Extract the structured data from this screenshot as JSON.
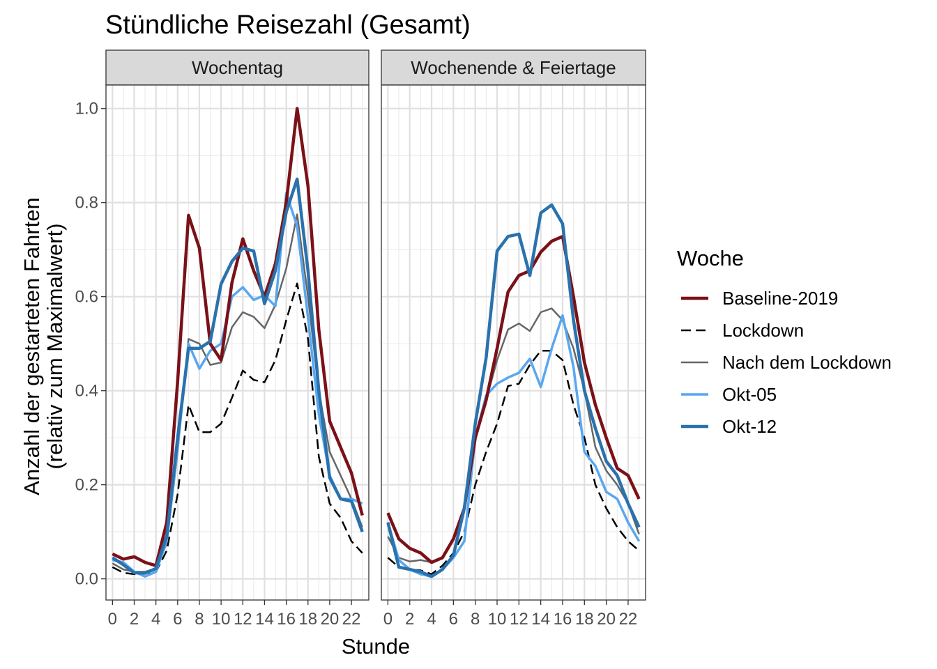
{
  "chart_data": {
    "type": "line",
    "title": "Stündliche Reisezahl (Gesamt)",
    "xlabel": "Stunde",
    "ylabel_line1": "Anzahl der gestarteten Fahrten",
    "ylabel_line2": "(relativ zum Maximalwert)",
    "x_ticks": [
      "0",
      "2",
      "4",
      "6",
      "8",
      "10",
      "12",
      "14",
      "16",
      "18",
      "20",
      "22"
    ],
    "y_ticks": [
      "0.0",
      "0.2",
      "0.4",
      "0.6",
      "0.8",
      "1.0"
    ],
    "xlim": [
      -0.6,
      23.6
    ],
    "ylim": [
      -0.045,
      1.05
    ],
    "grid": true,
    "legend": {
      "title": "Woche",
      "placement": "right",
      "entries": [
        {
          "name": "Baseline-2019",
          "color": "#7b1118",
          "width": 4.5,
          "dash": ""
        },
        {
          "name": "Lockdown",
          "color": "#000000",
          "width": 2.5,
          "dash": "14,7"
        },
        {
          "name": "Nach dem Lockdown",
          "color": "#666666",
          "width": 2.5,
          "dash": ""
        },
        {
          "name": "Okt-05",
          "color": "#59a7f0",
          "width": 3.5,
          "dash": ""
        },
        {
          "name": "Okt-12",
          "color": "#2a72ad",
          "width": 4.5,
          "dash": ""
        }
      ]
    },
    "x": [
      0,
      1,
      2,
      3,
      4,
      5,
      6,
      7,
      8,
      9,
      10,
      11,
      12,
      13,
      14,
      15,
      16,
      17,
      18,
      19,
      20,
      21,
      22,
      23
    ],
    "panels": [
      {
        "name": "Wochentag",
        "series": [
          {
            "name": "Baseline-2019",
            "values": [
              0.053,
              0.042,
              0.047,
              0.035,
              0.028,
              0.12,
              0.42,
              0.773,
              0.703,
              0.5,
              0.465,
              0.63,
              0.723,
              0.655,
              0.6,
              0.67,
              0.8,
              1.0,
              0.835,
              0.53,
              0.335,
              0.28,
              0.225,
              0.135
            ]
          },
          {
            "name": "Lockdown",
            "values": [
              0.025,
              0.013,
              0.01,
              0.012,
              0.015,
              0.06,
              0.18,
              0.37,
              0.312,
              0.312,
              0.33,
              0.385,
              0.443,
              0.423,
              0.418,
              0.465,
              0.55,
              0.628,
              0.51,
              0.26,
              0.16,
              0.13,
              0.08,
              0.055
            ]
          },
          {
            "name": "Nach dem Lockdown",
            "values": [
              0.033,
              0.02,
              0.015,
              0.015,
              0.022,
              0.075,
              0.27,
              0.51,
              0.5,
              0.455,
              0.46,
              0.535,
              0.567,
              0.557,
              0.533,
              0.583,
              0.66,
              0.775,
              0.6,
              0.4,
              0.27,
              0.22,
              0.17,
              0.11
            ]
          },
          {
            "name": "Okt-05",
            "values": [
              0.04,
              0.035,
              0.015,
              0.005,
              0.015,
              0.08,
              0.28,
              0.5,
              0.447,
              0.485,
              0.5,
              0.6,
              0.62,
              0.593,
              0.603,
              0.58,
              0.82,
              0.75,
              0.555,
              0.35,
              0.22,
              0.17,
              0.17,
              0.16
            ]
          },
          {
            "name": "Okt-12",
            "values": [
              0.045,
              0.03,
              0.013,
              0.012,
              0.022,
              0.09,
              0.3,
              0.49,
              0.49,
              0.505,
              0.627,
              0.675,
              0.703,
              0.697,
              0.585,
              0.655,
              0.78,
              0.85,
              0.655,
              0.4,
              0.215,
              0.17,
              0.165,
              0.1
            ]
          }
        ]
      },
      {
        "name": "Wochenende & Feiertage",
        "series": [
          {
            "name": "Baseline-2019",
            "values": [
              0.14,
              0.085,
              0.065,
              0.055,
              0.035,
              0.045,
              0.085,
              0.15,
              0.3,
              0.38,
              0.49,
              0.61,
              0.645,
              0.655,
              0.695,
              0.718,
              0.728,
              0.6,
              0.46,
              0.37,
              0.3,
              0.235,
              0.22,
              0.17
            ]
          },
          {
            "name": "Lockdown",
            "values": [
              0.045,
              0.025,
              0.02,
              0.018,
              0.01,
              0.028,
              0.055,
              0.1,
              0.2,
              0.27,
              0.33,
              0.41,
              0.415,
              0.455,
              0.485,
              0.485,
              0.465,
              0.37,
              0.3,
              0.2,
              0.15,
              0.11,
              0.08,
              0.06
            ]
          },
          {
            "name": "Nach dem Lockdown",
            "values": [
              0.09,
              0.045,
              0.037,
              0.04,
              0.035,
              0.045,
              0.085,
              0.15,
              0.3,
              0.38,
              0.465,
              0.53,
              0.543,
              0.527,
              0.567,
              0.575,
              0.55,
              0.49,
              0.4,
              0.28,
              0.23,
              0.2,
              0.16,
              0.095
            ]
          },
          {
            "name": "Okt-05",
            "values": [
              0.12,
              0.04,
              0.02,
              0.01,
              0.005,
              0.02,
              0.045,
              0.08,
              0.3,
              0.39,
              0.415,
              0.428,
              0.438,
              0.468,
              0.408,
              0.49,
              0.56,
              0.45,
              0.27,
              0.24,
              0.185,
              0.17,
              0.12,
              0.08
            ]
          },
          {
            "name": "Okt-12",
            "values": [
              0.12,
              0.025,
              0.02,
              0.015,
              0.005,
              0.02,
              0.05,
              0.15,
              0.33,
              0.47,
              0.697,
              0.728,
              0.733,
              0.645,
              0.778,
              0.795,
              0.755,
              0.55,
              0.4,
              0.32,
              0.25,
              0.22,
              0.16,
              0.11
            ]
          }
        ]
      }
    ]
  }
}
